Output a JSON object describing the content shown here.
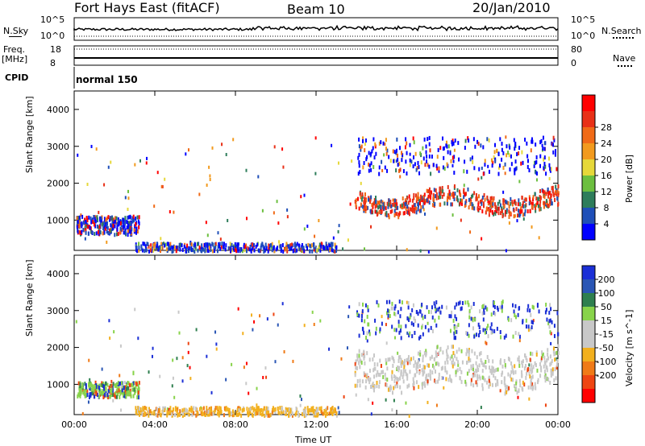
{
  "header": {
    "station": "Fort Hays East (fitACF)",
    "beam": "Beam 10",
    "date": "20/Jan/2010"
  },
  "top_panel": {
    "nsky_label": "N.Sky",
    "nsky_ticks": [
      "10^5",
      "10^0"
    ],
    "nsearch_label": "N.Search",
    "nsearch_ticks": [
      "10^5",
      "10^0"
    ],
    "freq_label_1": "Freq.",
    "freq_label_2": "[MHz]",
    "freq_ticks": [
      "18",
      "8"
    ],
    "nave_label": "Nave",
    "nave_ticks": [
      "80",
      "0"
    ],
    "cpid_label": "CPID",
    "cpid_value": "normal 150"
  },
  "colors": {
    "power_scale": [
      "#0000ff",
      "#1f4fb8",
      "#2e7d5b",
      "#6cbf3f",
      "#e6d83a",
      "#f29a1e",
      "#f06a17",
      "#e83017",
      "#ff0000"
    ],
    "velocity_scale": [
      "#1b2fd6",
      "#2a56b5",
      "#2e7f4f",
      "#88d34a",
      "#c8c8c8",
      "#c8c8c8",
      "#f2b01e",
      "#f07a17",
      "#ee4512",
      "#ff0000"
    ]
  },
  "chart_data": [
    {
      "type": "heatmap",
      "title": "",
      "xlabel": "",
      "ylabel": "Slant Range [km]",
      "xlim": [
        "00:00",
        "00:00"
      ],
      "x_ticks": [
        "00:00",
        "04:00",
        "08:00",
        "12:00",
        "16:00",
        "20:00",
        "00:00"
      ],
      "ylim": [
        180,
        4500
      ],
      "y_ticks": [
        1000,
        2000,
        3000,
        4000
      ],
      "colorbar_label": "Power [dB]",
      "colorbar_ticks": [
        4,
        8,
        12,
        16,
        20,
        24,
        28
      ],
      "features": [
        {
          "x_start": 0.1,
          "x_end": 3.2,
          "y_start": 650,
          "y_end": 1150
        },
        {
          "x_start": 3.0,
          "x_end": 13.0,
          "y_start": 200,
          "y_end": 420
        },
        {
          "x_start": 13.9,
          "x_end": 24.0,
          "y_start": 1300,
          "y_end": 2200
        },
        {
          "x_start": 14.0,
          "x_end": 24.0,
          "y_start": 2300,
          "y_end": 3300
        }
      ]
    },
    {
      "type": "heatmap",
      "title": "",
      "xlabel": "Time UT",
      "ylabel": "Slant Range [km]",
      "xlim": [
        "00:00",
        "00:00"
      ],
      "x_ticks": [
        "00:00",
        "04:00",
        "08:00",
        "12:00",
        "16:00",
        "20:00",
        "00:00"
      ],
      "ylim": [
        180,
        4500
      ],
      "y_ticks": [
        1000,
        2000,
        3000,
        4000
      ],
      "colorbar_label": "Velocity [m s^-1]",
      "colorbar_ticks": [
        200,
        100,
        50,
        15,
        -15,
        -50,
        -100,
        -200
      ],
      "features": [
        {
          "x_start": 0.1,
          "x_end": 3.2,
          "y_start": 700,
          "y_end": 1100
        },
        {
          "x_start": 3.0,
          "x_end": 13.0,
          "y_start": 200,
          "y_end": 420
        },
        {
          "x_start": 13.9,
          "x_end": 24.0,
          "y_start": 800,
          "y_end": 2200
        },
        {
          "x_start": 14.0,
          "x_end": 24.0,
          "y_start": 2300,
          "y_end": 3300
        }
      ]
    }
  ]
}
